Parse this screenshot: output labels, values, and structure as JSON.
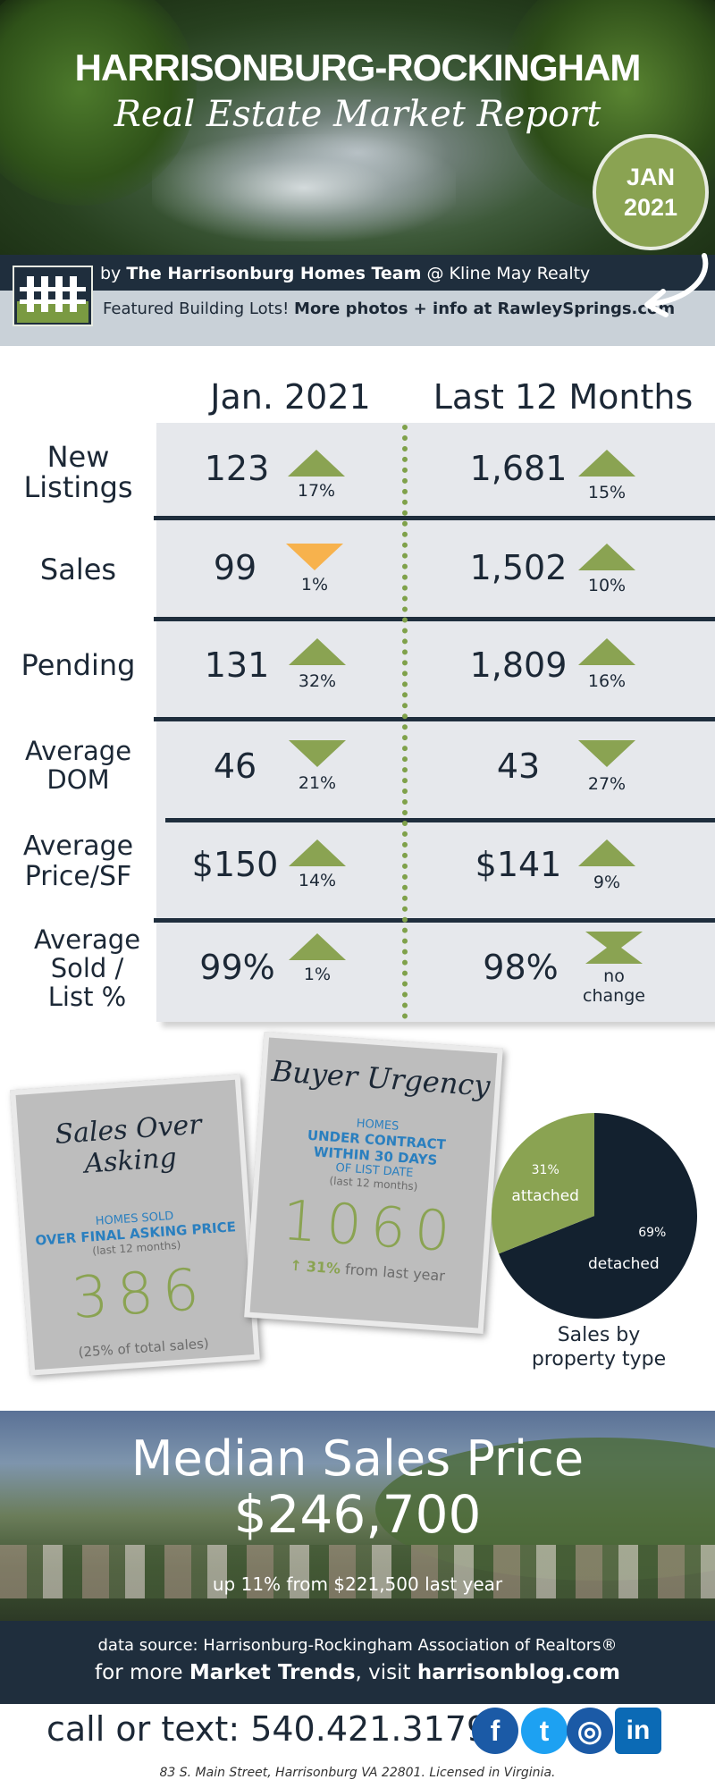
{
  "header": {
    "title": "HARRISONBURG-ROCKINGHAM",
    "subtitle": "Real Estate Market Report",
    "badge_month": "JAN",
    "badge_year": "2021"
  },
  "credit": {
    "by": "by",
    "team": "The Harrisonburg Homes Team",
    "at": "@ Kline May Realty"
  },
  "promo": {
    "lead": "Featured Building Lots!",
    "bold": "More photos + info at RawleySprings.com"
  },
  "table": {
    "col_month": "Jan. 2021",
    "col_year": "Last 12 Months",
    "rows": [
      {
        "label_1": "New",
        "label_2": "Listings",
        "label_3": "",
        "month_value": "123",
        "month_pct": "17%",
        "month_dir": "up",
        "year_value": "1,681",
        "year_pct": "15%",
        "year_dir": "up"
      },
      {
        "label_1": "Sales",
        "label_2": "",
        "label_3": "",
        "month_value": "99",
        "month_pct": "1%",
        "month_dir": "down-orange",
        "year_value": "1,502",
        "year_pct": "10%",
        "year_dir": "up"
      },
      {
        "label_1": "Pending",
        "label_2": "",
        "label_3": "",
        "month_value": "131",
        "month_pct": "32%",
        "month_dir": "up",
        "year_value": "1,809",
        "year_pct": "16%",
        "year_dir": "up"
      },
      {
        "label_1": "Average",
        "label_2": "DOM",
        "label_3": "",
        "month_value": "46",
        "month_pct": "21%",
        "month_dir": "down",
        "year_value": "43",
        "year_pct": "27%",
        "year_dir": "down"
      },
      {
        "label_1": "Average",
        "label_2": "Price/SF",
        "label_3": "",
        "month_value": "$150",
        "month_pct": "14%",
        "month_dir": "up",
        "year_value": "$141",
        "year_pct": "9%",
        "year_dir": "up"
      },
      {
        "label_1": "Average",
        "label_2": "Sold /",
        "label_3": "List %",
        "month_value": "99%",
        "month_pct": "1%",
        "month_dir": "up",
        "year_value": "98%",
        "year_pct_1": "no",
        "year_pct_2": "change",
        "year_dir": "flat"
      }
    ]
  },
  "cards": {
    "asking": {
      "title": "Sales Over Asking",
      "line1": "HOMES SOLD",
      "line2": "OVER FINAL ASKING PRICE",
      "note": "(last 12 months)",
      "value": "386",
      "foot": "(25% of total sales)"
    },
    "urgency": {
      "title": "Buyer Urgency",
      "line1": "HOMES",
      "line2": "UNDER CONTRACT",
      "line3": "WITHIN 30 DAYS",
      "line4": "OF LIST DATE",
      "note": "(last 12 months)",
      "value": "1060",
      "arrow": "↑",
      "pct": "31%",
      "foot": "from last year"
    }
  },
  "chart_data": {
    "type": "pie",
    "categories": [
      "attached",
      "detached"
    ],
    "values": [
      31,
      69
    ],
    "value_labels": [
      "31%",
      "69%"
    ],
    "colors": [
      "#8aa352",
      "#13212f"
    ],
    "caption_1": "Sales by",
    "caption_2": "property type"
  },
  "median": {
    "label": "Median Sales Price",
    "value": "$246,700",
    "note": "up 11% from $221,500 last year"
  },
  "footer": {
    "source": "data source: Harrisonburg-Rockingham Association of Realtors®",
    "trends_pre": "for more",
    "trends_bold": "Market Trends",
    "trends_mid": ", visit",
    "trends_site": "harrisonblog.com",
    "call": "call or text: 540.421.3179",
    "address": "83 S. Main Street, Harrisonburg VA 22801. Licensed in Virginia.",
    "social": [
      {
        "icon": "facebook-icon",
        "glyph": "f",
        "color": "#1b5aa6"
      },
      {
        "icon": "twitter-icon",
        "glyph": "t",
        "color": "#1da1f2"
      },
      {
        "icon": "instagram-icon",
        "glyph": "◎",
        "color": "#1b5aa6"
      },
      {
        "icon": "linkedin-icon",
        "glyph": "in",
        "color": "#0b6ab5"
      }
    ]
  }
}
